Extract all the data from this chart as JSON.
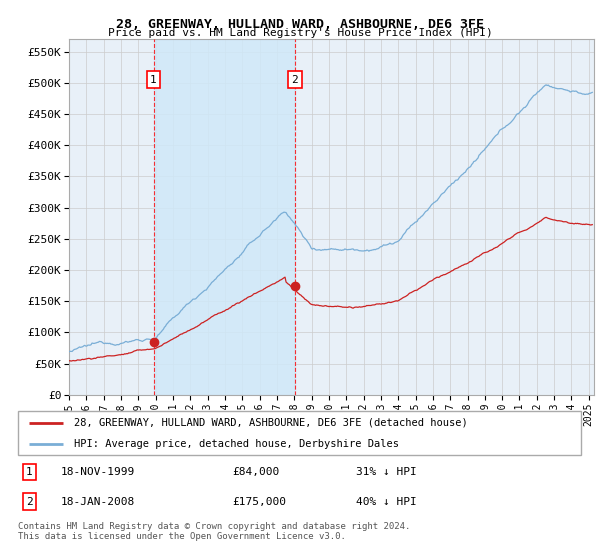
{
  "title": "28, GREENWAY, HULLAND WARD, ASHBOURNE, DE6 3FE",
  "subtitle": "Price paid vs. HM Land Registry's House Price Index (HPI)",
  "ylim": [
    0,
    570000
  ],
  "yticks": [
    0,
    50000,
    100000,
    150000,
    200000,
    250000,
    300000,
    350000,
    400000,
    450000,
    500000,
    550000
  ],
  "xlim_start": 1995.0,
  "xlim_end": 2025.3,
  "hpi_color": "#7aaed6",
  "price_color": "#cc2222",
  "shade_color": "#d0e8f8",
  "transaction1": {
    "date_num": 1999.88,
    "price": 84000,
    "label": "1"
  },
  "transaction2": {
    "date_num": 2008.04,
    "price": 175000,
    "label": "2"
  },
  "legend_label_price": "28, GREENWAY, HULLAND WARD, ASHBOURNE, DE6 3FE (detached house)",
  "legend_label_hpi": "HPI: Average price, detached house, Derbyshire Dales",
  "footnote": "Contains HM Land Registry data © Crown copyright and database right 2024.\nThis data is licensed under the Open Government Licence v3.0.",
  "bg_color": "#e8f0f8",
  "grid_color": "#cccccc"
}
